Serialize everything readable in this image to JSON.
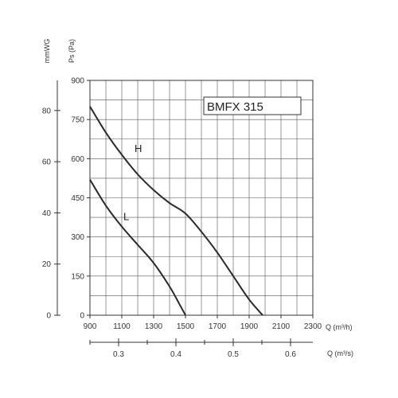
{
  "chart_data": {
    "type": "line",
    "title": "BMFX 315",
    "x_axis": {
      "label": "Q (m³/h)",
      "range": [
        900,
        2300
      ],
      "ticks": [
        900,
        1100,
        1300,
        1500,
        1700,
        1900,
        2100,
        2300
      ],
      "tick_labels": [
        "900",
        "1100",
        "1300",
        "1500",
        "1700",
        "1900",
        "2100",
        "2300"
      ]
    },
    "x2_axis": {
      "label": "Q (m³/s)",
      "ticks": [
        0.3,
        0.4,
        0.5,
        0.6
      ],
      "tick_labels": [
        "0.3",
        "0.4",
        "0.5",
        "0.6"
      ]
    },
    "y_axis": {
      "label": "Ps (Pa)",
      "range": [
        0,
        900
      ],
      "ticks": [
        0,
        150,
        300,
        450,
        600,
        750,
        900
      ],
      "tick_labels": [
        "0",
        "150",
        "300",
        "450",
        "600",
        "750",
        "900"
      ]
    },
    "y2_axis": {
      "label": "mmWG",
      "ticks": [
        0,
        20,
        40,
        60,
        80
      ],
      "tick_labels": [
        "0",
        "20",
        "40",
        "60",
        "80"
      ]
    },
    "grid": true,
    "series": [
      {
        "name": "H",
        "x": [
          900,
          1000,
          1100,
          1200,
          1300,
          1400,
          1500,
          1600,
          1700,
          1800,
          1900,
          1985
        ],
        "y": [
          800,
          700,
          615,
          540,
          480,
          430,
          390,
          320,
          240,
          150,
          60,
          0
        ]
      },
      {
        "name": "L",
        "x": [
          900,
          1000,
          1100,
          1200,
          1300,
          1400,
          1460,
          1500
        ],
        "y": [
          520,
          420,
          340,
          270,
          200,
          110,
          45,
          0
        ]
      }
    ],
    "curve_label_at": [
      {
        "text": "H",
        "x": 1200,
        "y": 640
      },
      {
        "text": "L",
        "x": 1130,
        "y": 380
      }
    ]
  }
}
